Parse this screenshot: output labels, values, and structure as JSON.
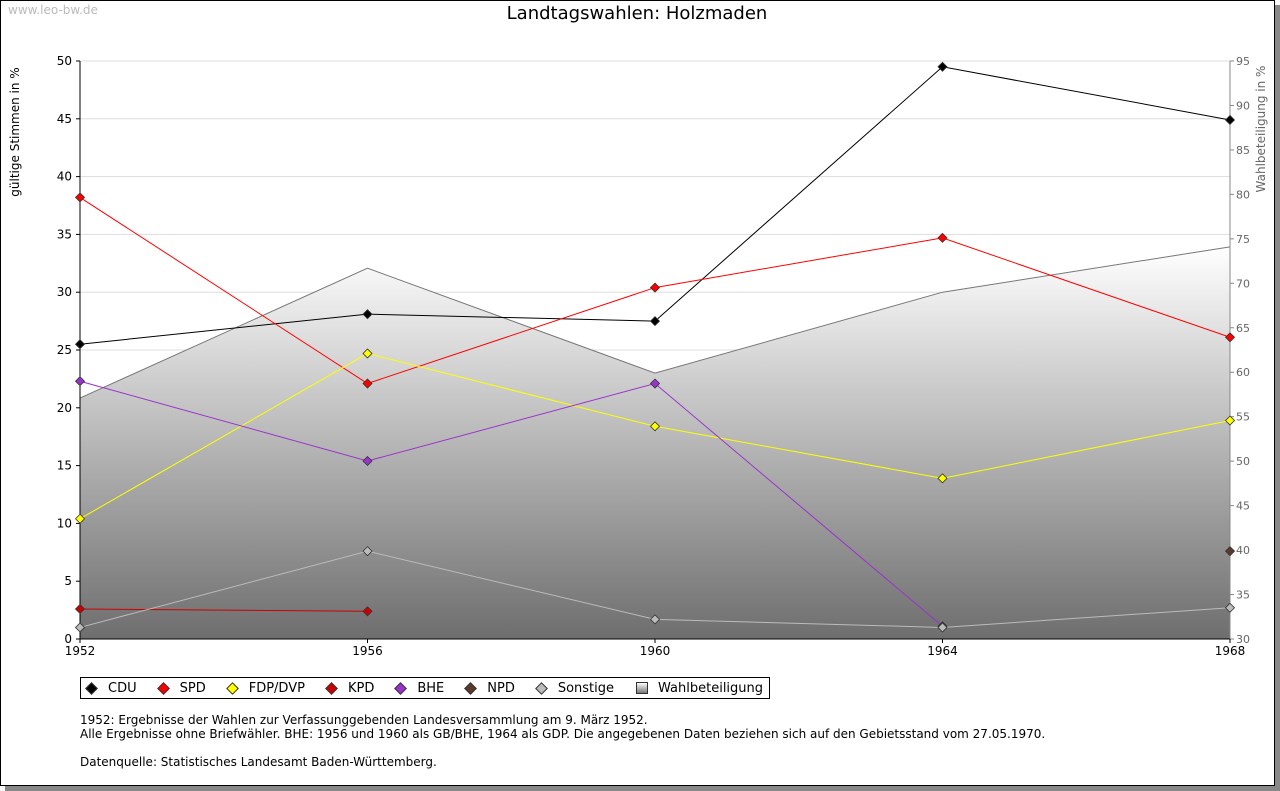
{
  "watermark": "www.leo-bw.de",
  "chart_data": {
    "type": "line",
    "title": "Landtagswahlen: Holzmaden",
    "ylabel": "gültige Stimmen in %",
    "ylabel_right": "Wahlbeteiligung in %",
    "ylim": [
      0,
      50
    ],
    "ylim_right": [
      30,
      95
    ],
    "yticks": [
      0,
      5,
      10,
      15,
      20,
      25,
      30,
      35,
      40,
      45,
      50
    ],
    "yticks_right": [
      30,
      35,
      40,
      45,
      50,
      55,
      60,
      65,
      70,
      75,
      80,
      85,
      90,
      95
    ],
    "x": [
      1952,
      1956,
      1960,
      1964,
      1968
    ],
    "grid": true,
    "legend_position": "bottom",
    "series": [
      {
        "name": "CDU",
        "color": "#000000",
        "values": [
          25.5,
          28.1,
          27.5,
          49.5,
          44.9
        ]
      },
      {
        "name": "SPD",
        "color": "#ff0000",
        "values": [
          38.2,
          22.1,
          30.4,
          34.7,
          26.1
        ]
      },
      {
        "name": "FDP/DVP",
        "color": "#ffff00",
        "values": [
          10.4,
          24.7,
          18.4,
          13.9,
          18.9
        ]
      },
      {
        "name": "KPD",
        "color": "#cc0000",
        "values": [
          2.6,
          2.4,
          null,
          null,
          null
        ]
      },
      {
        "name": "BHE",
        "color": "#9933cc",
        "values": [
          22.3,
          15.4,
          22.1,
          1.1,
          null
        ]
      },
      {
        "name": "NPD",
        "color": "#5a3a2a",
        "values": [
          null,
          null,
          null,
          null,
          7.6
        ]
      },
      {
        "name": "Sonstige",
        "color": "#bbbbbb",
        "values": [
          1.0,
          7.6,
          1.7,
          1.0,
          2.7
        ]
      }
    ],
    "area": {
      "name": "Wahlbeteiligung",
      "axis": "right",
      "values": [
        57.1,
        71.7,
        59.9,
        69.0,
        74.1
      ]
    }
  },
  "notes": [
    "1952: Ergebnisse der Wahlen zur Verfassunggebenden Landesversammlung am 9. März 1952.",
    "Alle Ergebnisse ohne Briefwähler. BHE: 1956 und 1960 als GB/BHE, 1964 als GDP. Die angegebenen Daten beziehen sich auf den Gebietsstand vom 27.05.1970.",
    "",
    "Datenquelle: Statistisches Landesamt Baden-Württemberg."
  ]
}
